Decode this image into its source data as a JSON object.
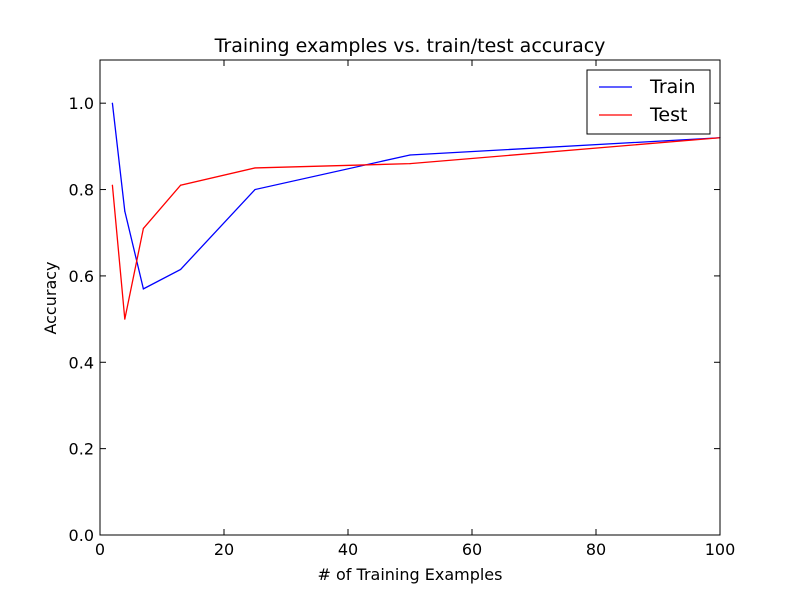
{
  "chart_data": {
    "type": "line",
    "title": "Training examples vs. train/test accuracy",
    "xlabel": "# of Training Examples",
    "ylabel": "Accuracy",
    "xlim": [
      0,
      100
    ],
    "ylim": [
      0.0,
      1.1
    ],
    "xticks": [
      0,
      20,
      40,
      60,
      80,
      100
    ],
    "xtick_labels": [
      "0",
      "20",
      "40",
      "60",
      "80",
      "100"
    ],
    "yticks": [
      0.0,
      0.2,
      0.4,
      0.6,
      0.8,
      1.0
    ],
    "ytick_labels": [
      "0.0",
      "0.2",
      "0.4",
      "0.6",
      "0.8",
      "1.0"
    ],
    "grid": false,
    "legend_position": "top-right",
    "series": [
      {
        "name": "Train",
        "color": "#0000ff",
        "x": [
          2,
          4,
          7,
          13,
          25,
          50,
          100
        ],
        "y": [
          1.0,
          0.75,
          0.57,
          0.615,
          0.8,
          0.88,
          0.92
        ]
      },
      {
        "name": "Test",
        "color": "#ff0000",
        "x": [
          2,
          4,
          7,
          13,
          25,
          50,
          100
        ],
        "y": [
          0.81,
          0.5,
          0.71,
          0.81,
          0.85,
          0.86,
          0.92
        ]
      }
    ]
  }
}
